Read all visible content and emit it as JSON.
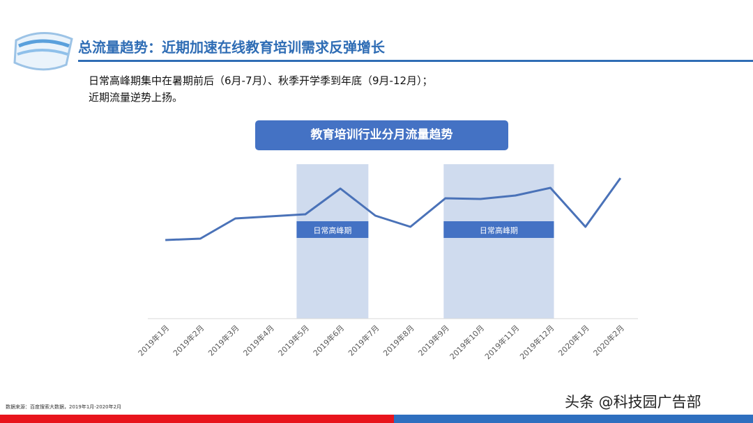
{
  "header": {
    "title": "总流量趋势：近期加速在线教育培训需求反弹增长",
    "lines": [
      "日常高峰期集中在暑期前后（6月-7月）、秋季开学季到年底（9月-12月）；",
      "近期流量逆势上扬。"
    ]
  },
  "chart_data": {
    "type": "line",
    "title": "教育培训行业分月流量趋势",
    "categories": [
      "2019年1月",
      "2019年2月",
      "2019年3月",
      "2019年4月",
      "2019年5月",
      "2019年6月",
      "2019年7月",
      "2019年8月",
      "2019年9月",
      "2019年10月",
      "2019年11月",
      "2019年12月",
      "2020年1月",
      "2020年2月"
    ],
    "values": [
      113,
      115,
      144,
      147,
      150,
      187,
      148,
      132,
      173,
      172,
      177,
      188,
      132,
      202
    ],
    "color": "#4a72b8",
    "ylim": [
      0,
      220
    ],
    "annotations": [
      "日常高峰期",
      "日常高峰期"
    ]
  },
  "footer": {
    "source": "数据来源：百度搜索大数据，2019年1月-2020年2月",
    "watermark": "头条 @科技园广告部"
  }
}
